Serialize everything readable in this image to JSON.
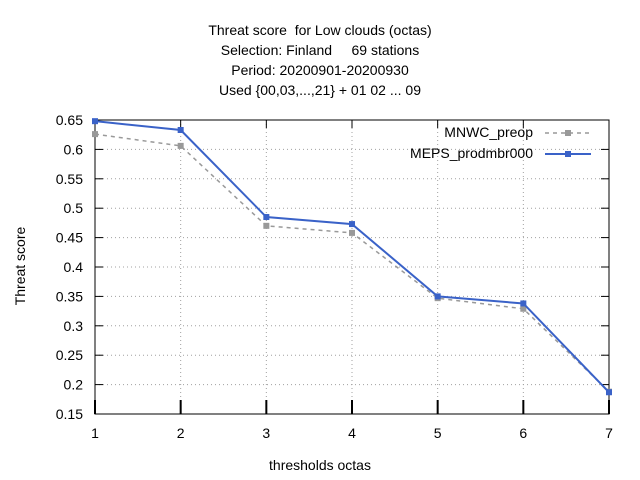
{
  "chart_data": {
    "type": "line",
    "title_lines": [
      "Threat score  for Low clouds (octas)",
      "Selection: Finland     69 stations",
      "Period: 20200901-20200930",
      "Used {00,03,...,21} + 01 02 ... 09"
    ],
    "xlabel": "thresholds octas",
    "ylabel": "Threat score",
    "x": [
      1,
      2,
      3,
      4,
      5,
      6,
      7
    ],
    "xlim": [
      1,
      7
    ],
    "ylim": [
      0.15,
      0.65
    ],
    "yticks": [
      "0.15",
      "0.2",
      "0.25",
      "0.3",
      "0.35",
      "0.4",
      "0.45",
      "0.5",
      "0.55",
      "0.6",
      "0.65"
    ],
    "xticks": [
      "1",
      "2",
      "3",
      "4",
      "5",
      "6",
      "7"
    ],
    "grid": true,
    "legend_position": "top-right",
    "series": [
      {
        "name": "MNWC_preop",
        "color": "#999999",
        "style": "dashed",
        "values": [
          0.626,
          0.606,
          0.47,
          0.458,
          0.347,
          0.329,
          0.188
        ]
      },
      {
        "name": "MEPS_prodmbr000",
        "color": "#3a62c8",
        "style": "solid",
        "values": [
          0.648,
          0.633,
          0.485,
          0.473,
          0.35,
          0.338,
          0.187
        ]
      }
    ]
  }
}
